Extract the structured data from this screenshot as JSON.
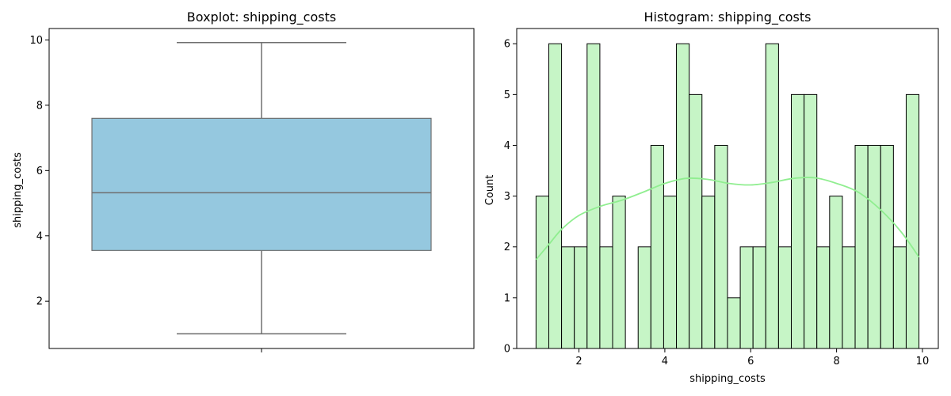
{
  "chart_data": [
    {
      "type": "boxplot",
      "title": "Boxplot: shipping_costs",
      "xlabel": "",
      "ylabel": "shipping_costs",
      "ylim": [
        0.55,
        10.35
      ],
      "yticks": [
        2,
        4,
        6,
        8,
        10
      ],
      "box": {
        "whisker_low": 1.0,
        "q1": 3.55,
        "median": 5.32,
        "q3": 7.6,
        "whisker_high": 9.92
      },
      "colors": {
        "box_fill": "#95c8df",
        "lines": "#6f6f6f"
      }
    },
    {
      "type": "histogram",
      "title": "Histogram: shipping_costs",
      "xlabel": "shipping_costs",
      "ylabel": "Count",
      "xlim": [
        0.55,
        10.37
      ],
      "ylim": [
        0,
        6.3
      ],
      "xticks": [
        2,
        4,
        6,
        8,
        10
      ],
      "yticks": [
        0,
        1,
        2,
        3,
        4,
        5,
        6
      ],
      "bin_start": 1.0,
      "bin_width": 0.2973,
      "counts": [
        3,
        6,
        2,
        2,
        6,
        2,
        3,
        0,
        2,
        4,
        3,
        6,
        5,
        3,
        4,
        1,
        2,
        2,
        6,
        2,
        5,
        5,
        2,
        3,
        2,
        4,
        4,
        4,
        2,
        5
      ],
      "kde": {
        "x": [
          1.0,
          1.3,
          1.6,
          2.0,
          2.5,
          3.0,
          3.5,
          4.0,
          4.5,
          5.0,
          5.5,
          6.0,
          6.5,
          7.0,
          7.5,
          8.0,
          8.5,
          9.0,
          9.5,
          9.92
        ],
        "y": [
          1.75,
          2.05,
          2.35,
          2.62,
          2.8,
          2.92,
          3.08,
          3.25,
          3.35,
          3.33,
          3.25,
          3.22,
          3.27,
          3.35,
          3.36,
          3.25,
          3.08,
          2.75,
          2.3,
          1.8
        ]
      },
      "colors": {
        "bar_fill": "#c6f5c6",
        "bar_edge": "#000000",
        "kde": "#90ee90"
      }
    }
  ]
}
